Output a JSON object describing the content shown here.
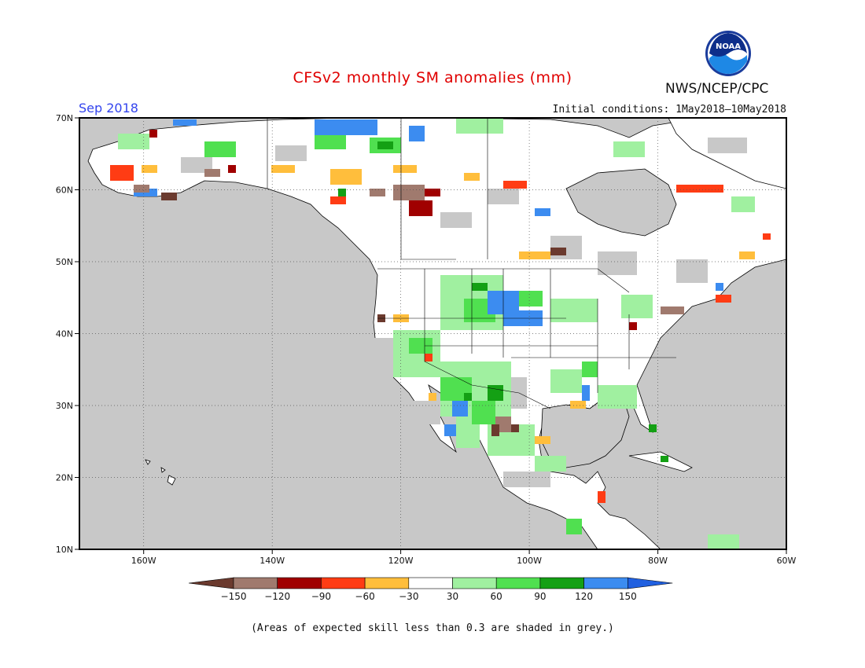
{
  "header": {
    "title": "CFSv2 monthly SM anomalies (mm)",
    "month": "Sep 2018",
    "initial_conditions": "Initial conditions: 1May2018–10May2018",
    "agency": "NWS/NCEP/CPC",
    "logo_text": "NOAA"
  },
  "map": {
    "lon_labels": [
      "160W",
      "140W",
      "120W",
      "100W",
      "80W",
      "60W"
    ],
    "lat_labels": [
      "70N",
      "60N",
      "50N",
      "40N",
      "30N",
      "20N",
      "10N"
    ],
    "lon_range": [
      -171,
      -60
    ],
    "lat_range": [
      10,
      70
    ],
    "background_color": "#c8c8c8",
    "land_neutral_color": "#ffffff"
  },
  "colorbar": {
    "labels": [
      "−150",
      "−120",
      "−90",
      "−60",
      "−30",
      "30",
      "60",
      "90",
      "120",
      "150"
    ],
    "colors": [
      "#6b3a2e",
      "#a07a6e",
      "#a00000",
      "#ff3c14",
      "#ffbe3c",
      "#ffffff",
      "#a0f0a0",
      "#50e050",
      "#14a014",
      "#3c8cf0",
      "#2060e0"
    ]
  },
  "footnote": "(Areas of expected skill less than 0.3 are shaded in grey.)"
}
